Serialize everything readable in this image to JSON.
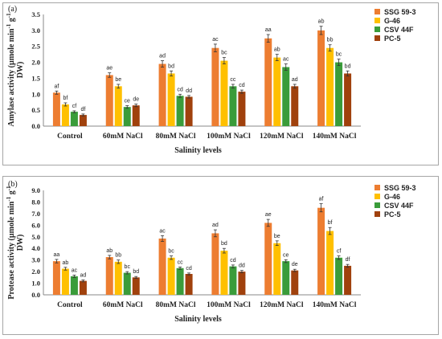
{
  "colors": {
    "SSG 59-3": "#ed7d31",
    "G-46": "#ffc000",
    "CSV 44F": "#3a9c3a",
    "PC-5": "#a0410d"
  },
  "chart_data": [
    {
      "type": "bar",
      "panel_label": "(a)",
      "ylabel_line1": "Amylase activity (µmole min",
      "ylabel_line2": "DW)",
      "xlabel": "Salinity levels",
      "ylim": [
        0,
        3.5
      ],
      "yticks": [
        "0.0",
        "0.5",
        "1.0",
        "1.5",
        "2.0",
        "2.5",
        "3.0",
        "3.5"
      ],
      "categories": [
        "Control",
        "60mM NaCl",
        "80mM NaCl",
        "100mM NaCl",
        "120mM NaCl",
        "140mM NaCl"
      ],
      "legend_position": "right",
      "series": [
        {
          "name": "SSG 59-3",
          "values": [
            1.05,
            1.6,
            1.95,
            2.45,
            2.75,
            3.0
          ],
          "errors": [
            0.05,
            0.07,
            0.1,
            0.12,
            0.12,
            0.13
          ],
          "labels": [
            "af",
            "ae",
            "ad",
            "ac",
            "aa",
            "ab"
          ]
        },
        {
          "name": "G-46",
          "values": [
            0.68,
            1.25,
            1.65,
            2.05,
            2.15,
            2.45
          ],
          "errors": [
            0.05,
            0.06,
            0.08,
            0.1,
            0.1,
            0.1
          ],
          "labels": [
            "bf",
            "be",
            "bd",
            "bc",
            "ab",
            "bb"
          ]
        },
        {
          "name": "CSV 44F",
          "values": [
            0.45,
            0.6,
            0.95,
            1.25,
            1.85,
            2.0
          ],
          "errors": [
            0.03,
            0.04,
            0.05,
            0.06,
            0.1,
            0.1
          ],
          "labels": [
            "cf",
            "ce",
            "cd",
            "cc",
            "ac",
            "bc"
          ]
        },
        {
          "name": "PC-5",
          "values": [
            0.35,
            0.65,
            0.92,
            1.08,
            1.25,
            1.65
          ],
          "errors": [
            0.03,
            0.04,
            0.04,
            0.05,
            0.06,
            0.08
          ],
          "labels": [
            "df",
            "de",
            "dd",
            "cd",
            "ad",
            "bd"
          ]
        }
      ]
    },
    {
      "type": "bar",
      "panel_label": "(b)",
      "ylabel_line1": "Protease activity (µmole min",
      "ylabel_line2": "DW)",
      "xlabel": "Salinity levels",
      "ylim": [
        0,
        9
      ],
      "yticks": [
        "0.0",
        "1.0",
        "2.0",
        "3.0",
        "4.0",
        "5.0",
        "6.0",
        "7.0",
        "8.0",
        "9.0"
      ],
      "categories": [
        "Control",
        "60mM NaCl",
        "80mM NaCl",
        "100mM NaCl",
        "120mM NaCl",
        "140mM NaCl"
      ],
      "legend_position": "right",
      "series": [
        {
          "name": "SSG 59-3",
          "values": [
            2.9,
            3.25,
            4.85,
            5.3,
            6.2,
            7.5
          ],
          "errors": [
            0.15,
            0.15,
            0.25,
            0.3,
            0.3,
            0.35
          ],
          "labels": [
            "aa",
            "ab",
            "ac",
            "ad",
            "ae",
            "af"
          ]
        },
        {
          "name": "G-46",
          "values": [
            2.25,
            2.85,
            3.2,
            3.8,
            4.45,
            5.5
          ],
          "errors": [
            0.12,
            0.15,
            0.15,
            0.2,
            0.2,
            0.3
          ],
          "labels": [
            "ab",
            "bb",
            "bc",
            "bd",
            "be",
            "bf"
          ]
        },
        {
          "name": "CSV 44F",
          "values": [
            1.6,
            1.9,
            2.3,
            2.45,
            2.9,
            3.2
          ],
          "errors": [
            0.1,
            0.1,
            0.1,
            0.12,
            0.12,
            0.15
          ],
          "labels": [
            "ac",
            "bc",
            "cc",
            "cd",
            "ce",
            "cf"
          ]
        },
        {
          "name": "PC-5",
          "values": [
            1.2,
            1.5,
            1.8,
            2.0,
            2.1,
            2.5
          ],
          "errors": [
            0.08,
            0.08,
            0.08,
            0.1,
            0.1,
            0.12
          ],
          "labels": [
            "ad",
            "bd",
            "cd",
            "dd",
            "de",
            "df"
          ]
        }
      ]
    }
  ]
}
